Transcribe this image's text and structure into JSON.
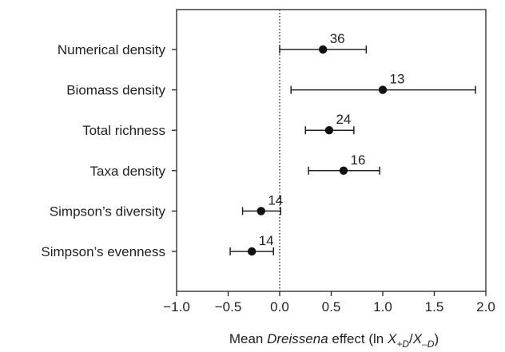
{
  "chart_data": {
    "type": "forest",
    "categories": [
      "Numerical density",
      "Biomass density",
      "Total richness",
      "Taxa density",
      "Simpson’s diversity",
      "Simpson’s evenness"
    ],
    "points": [
      {
        "mean": 0.42,
        "lower": 0.0,
        "upper": 0.84,
        "n": "36"
      },
      {
        "mean": 1.0,
        "lower": 0.11,
        "upper": 1.9,
        "n": "13"
      },
      {
        "mean": 0.48,
        "lower": 0.25,
        "upper": 0.72,
        "n": "24"
      },
      {
        "mean": 0.62,
        "lower": 0.28,
        "upper": 0.97,
        "n": "16"
      },
      {
        "mean": -0.18,
        "lower": -0.36,
        "upper": 0.01,
        "n": "14"
      },
      {
        "mean": -0.27,
        "lower": -0.48,
        "upper": -0.06,
        "n": "14"
      }
    ],
    "xlim": [
      -1.0,
      2.0
    ],
    "xticks": [
      "−1.0",
      "−0.5",
      "0.0",
      "0.5",
      "1.0",
      "1.5",
      "2.0"
    ],
    "xtick_values": [
      -1.0,
      -0.5,
      0.0,
      0.5,
      1.0,
      1.5,
      2.0
    ],
    "xlabel": {
      "prefix": "Mean ",
      "italic": "Dreissena",
      "middle": " effect (ln ",
      "x1": "X",
      "sub1": "+D",
      "slash": "/",
      "x2": "X",
      "sub2": "–D",
      "suffix": ")"
    },
    "reference_line": 0.0,
    "grid": false
  }
}
